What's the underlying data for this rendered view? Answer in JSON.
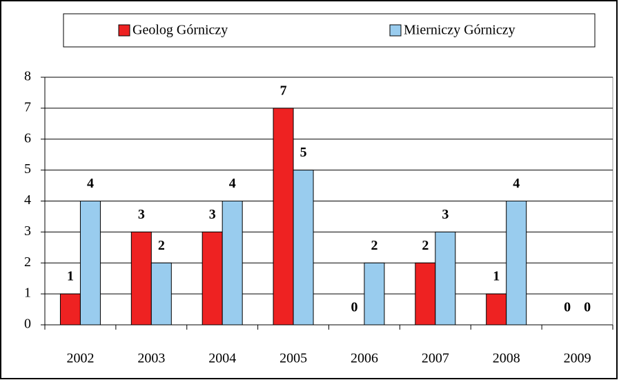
{
  "chart_data": {
    "type": "bar",
    "categories": [
      "2002",
      "2003",
      "2004",
      "2005",
      "2006",
      "2007",
      "2008",
      "2009"
    ],
    "series": [
      {
        "name": "Geolog Górniczy",
        "color": "#ee2222",
        "values": [
          1,
          3,
          3,
          7,
          0,
          2,
          1,
          0
        ]
      },
      {
        "name": "Mierniczy Górniczy",
        "color": "#99ccee",
        "values": [
          4,
          2,
          4,
          5,
          2,
          3,
          4,
          0
        ]
      }
    ],
    "ylim": [
      0,
      8
    ],
    "yticks": [
      0,
      1,
      2,
      3,
      4,
      5,
      6,
      7,
      8
    ],
    "grid": true,
    "legend": "top"
  }
}
